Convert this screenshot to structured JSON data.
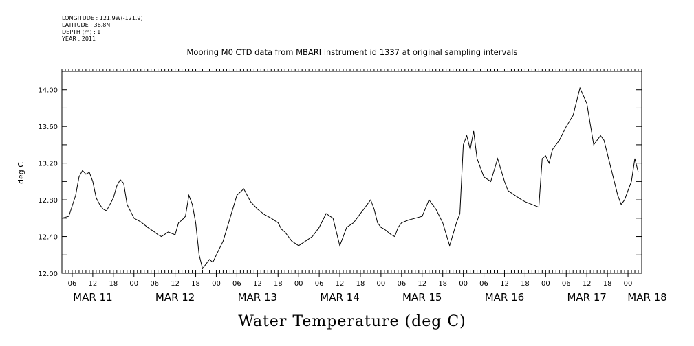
{
  "header": {
    "longitude": "LONGITUDE : 121.9W(-121.9)",
    "latitude": "LATITUDE : 36.8N",
    "depth": "DEPTH (m) : 1",
    "year": "YEAR : 2011"
  },
  "chart_data": {
    "type": "line",
    "title": "Mooring M0 CTD data from MBARI instrument id 1337 at original sampling intervals",
    "ylabel": "deg C",
    "bottom_label": "Water Temperature (deg C)",
    "ylim": [
      12.0,
      14.2
    ],
    "yticks": [
      "12.00",
      "12.40",
      "12.80",
      "13.20",
      "13.60",
      "14.00"
    ],
    "ytick_values": [
      12.0,
      12.4,
      12.8,
      13.2,
      13.6,
      14.0
    ],
    "xlim": [
      "2011-03-11T03:00",
      "2011-03-18T04:00"
    ],
    "hour_ticks": [
      {
        "t": "2011-03-11T06:00",
        "label": "06"
      },
      {
        "t": "2011-03-11T12:00",
        "label": "12"
      },
      {
        "t": "2011-03-11T18:00",
        "label": "18"
      },
      {
        "t": "2011-03-12T00:00",
        "label": "00"
      },
      {
        "t": "2011-03-12T06:00",
        "label": "06"
      },
      {
        "t": "2011-03-12T12:00",
        "label": "12"
      },
      {
        "t": "2011-03-12T18:00",
        "label": "18"
      },
      {
        "t": "2011-03-13T00:00",
        "label": "00"
      },
      {
        "t": "2011-03-13T06:00",
        "label": "06"
      },
      {
        "t": "2011-03-13T12:00",
        "label": "12"
      },
      {
        "t": "2011-03-13T18:00",
        "label": "18"
      },
      {
        "t": "2011-03-14T00:00",
        "label": "00"
      },
      {
        "t": "2011-03-14T06:00",
        "label": "06"
      },
      {
        "t": "2011-03-14T12:00",
        "label": "12"
      },
      {
        "t": "2011-03-14T18:00",
        "label": "18"
      },
      {
        "t": "2011-03-15T00:00",
        "label": "00"
      },
      {
        "t": "2011-03-15T06:00",
        "label": "06"
      },
      {
        "t": "2011-03-15T12:00",
        "label": "12"
      },
      {
        "t": "2011-03-15T18:00",
        "label": "18"
      },
      {
        "t": "2011-03-16T00:00",
        "label": "00"
      },
      {
        "t": "2011-03-16T06:00",
        "label": "06"
      },
      {
        "t": "2011-03-16T12:00",
        "label": "12"
      },
      {
        "t": "2011-03-16T18:00",
        "label": "18"
      },
      {
        "t": "2011-03-17T00:00",
        "label": "00"
      },
      {
        "t": "2011-03-17T06:00",
        "label": "06"
      },
      {
        "t": "2011-03-17T12:00",
        "label": "12"
      },
      {
        "t": "2011-03-17T18:00",
        "label": "18"
      },
      {
        "t": "2011-03-18T00:00",
        "label": "00"
      }
    ],
    "date_labels": [
      {
        "t": "2011-03-11T12:00",
        "label": "MAR 11"
      },
      {
        "t": "2011-03-12T12:00",
        "label": "MAR 12"
      },
      {
        "t": "2011-03-13T12:00",
        "label": "MAR 13"
      },
      {
        "t": "2011-03-14T12:00",
        "label": "MAR 14"
      },
      {
        "t": "2011-03-15T12:00",
        "label": "MAR 15"
      },
      {
        "t": "2011-03-16T12:00",
        "label": "MAR 16"
      },
      {
        "t": "2011-03-17T12:00",
        "label": "MAR 17"
      },
      {
        "t": "2011-03-18T12:00",
        "label": "MAR 18"
      }
    ],
    "series": [
      {
        "x": [
          "2011-03-11T03:00",
          "2011-03-11T05:00",
          "2011-03-11T07:00",
          "2011-03-11T08:00",
          "2011-03-11T09:00",
          "2011-03-11T10:00",
          "2011-03-11T11:00",
          "2011-03-11T12:00",
          "2011-03-11T13:00",
          "2011-03-11T14:00",
          "2011-03-11T15:00",
          "2011-03-11T16:00",
          "2011-03-11T17:00",
          "2011-03-11T18:00",
          "2011-03-11T19:00",
          "2011-03-11T20:00",
          "2011-03-11T21:00",
          "2011-03-11T22:00",
          "2011-03-12T00:00",
          "2011-03-12T02:00",
          "2011-03-12T04:00",
          "2011-03-12T06:00",
          "2011-03-12T07:00",
          "2011-03-12T08:00",
          "2011-03-12T10:00",
          "2011-03-12T12:00",
          "2011-03-12T13:00",
          "2011-03-12T14:00",
          "2011-03-12T15:00",
          "2011-03-12T16:00",
          "2011-03-12T17:00",
          "2011-03-12T18:00",
          "2011-03-12T19:00",
          "2011-03-12T20:00",
          "2011-03-12T21:00",
          "2011-03-12T22:00",
          "2011-03-12T23:00",
          "2011-03-13T00:00",
          "2011-03-13T02:00",
          "2011-03-13T04:00",
          "2011-03-13T06:00",
          "2011-03-13T08:00",
          "2011-03-13T10:00",
          "2011-03-13T12:00",
          "2011-03-13T14:00",
          "2011-03-13T16:00",
          "2011-03-13T18:00",
          "2011-03-13T19:00",
          "2011-03-13T20:00",
          "2011-03-13T21:00",
          "2011-03-13T22:00",
          "2011-03-14T00:00",
          "2011-03-14T02:00",
          "2011-03-14T04:00",
          "2011-03-14T06:00",
          "2011-03-14T08:00",
          "2011-03-14T10:00",
          "2011-03-14T12:00",
          "2011-03-14T14:00",
          "2011-03-14T16:00",
          "2011-03-14T17:00",
          "2011-03-14T18:00",
          "2011-03-14T19:00",
          "2011-03-14T20:00",
          "2011-03-14T21:00",
          "2011-03-14T22:00",
          "2011-03-14T23:00",
          "2011-03-15T00:00",
          "2011-03-15T01:00",
          "2011-03-15T02:00",
          "2011-03-15T03:00",
          "2011-03-15T04:00",
          "2011-03-15T05:00",
          "2011-03-15T06:00",
          "2011-03-15T08:00",
          "2011-03-15T10:00",
          "2011-03-15T12:00",
          "2011-03-15T14:00",
          "2011-03-15T16:00",
          "2011-03-15T18:00",
          "2011-03-15T20:00",
          "2011-03-15T22:00",
          "2011-03-15T23:00",
          "2011-03-16T00:00",
          "2011-03-16T01:00",
          "2011-03-16T02:00",
          "2011-03-16T03:00",
          "2011-03-16T04:00",
          "2011-03-16T06:00",
          "2011-03-16T08:00",
          "2011-03-16T10:00",
          "2011-03-16T12:00",
          "2011-03-16T13:00",
          "2011-03-16T15:00",
          "2011-03-16T17:00",
          "2011-03-16T18:00",
          "2011-03-16T20:00",
          "2011-03-16T22:00",
          "2011-03-16T23:00",
          "2011-03-17T00:00",
          "2011-03-17T01:00",
          "2011-03-17T02:00",
          "2011-03-17T04:00",
          "2011-03-17T06:00",
          "2011-03-17T08:00",
          "2011-03-17T10:00",
          "2011-03-17T12:00",
          "2011-03-17T14:00",
          "2011-03-17T16:00",
          "2011-03-17T17:00",
          "2011-03-17T18:00",
          "2011-03-17T19:00",
          "2011-03-17T20:00",
          "2011-03-17T21:00",
          "2011-03-17T22:00",
          "2011-03-17T23:00",
          "2011-03-18T00:00",
          "2011-03-18T01:00",
          "2011-03-18T02:00",
          "2011-03-18T03:00"
        ],
        "y": [
          12.6,
          12.62,
          12.85,
          13.05,
          13.12,
          13.08,
          13.1,
          13.0,
          12.82,
          12.75,
          12.7,
          12.68,
          12.75,
          12.82,
          12.95,
          13.02,
          12.98,
          12.75,
          12.6,
          12.56,
          12.5,
          12.45,
          12.42,
          12.4,
          12.45,
          12.42,
          12.55,
          12.58,
          12.62,
          12.85,
          12.75,
          12.55,
          12.2,
          12.05,
          12.1,
          12.15,
          12.12,
          12.2,
          12.35,
          12.6,
          12.85,
          12.92,
          12.78,
          12.7,
          12.64,
          12.6,
          12.55,
          12.48,
          12.45,
          12.4,
          12.35,
          12.3,
          12.35,
          12.4,
          12.5,
          12.65,
          12.6,
          12.3,
          12.5,
          12.55,
          12.6,
          12.65,
          12.7,
          12.75,
          12.8,
          12.7,
          12.55,
          12.5,
          12.48,
          12.45,
          12.42,
          12.4,
          12.5,
          12.55,
          12.58,
          12.6,
          12.62,
          12.8,
          12.7,
          12.55,
          12.3,
          12.55,
          12.65,
          13.4,
          13.5,
          13.35,
          13.55,
          13.25,
          13.05,
          13.0,
          13.25,
          13.0,
          12.9,
          12.85,
          12.8,
          12.78,
          12.75,
          12.72,
          13.25,
          13.28,
          13.2,
          13.35,
          13.45,
          13.6,
          13.72,
          14.02,
          13.85,
          13.4,
          13.5,
          13.45,
          13.3,
          13.15,
          13.0,
          12.85,
          12.75,
          12.8,
          12.9,
          13.0,
          13.25,
          13.1
        ],
        "color": "#000000"
      }
    ]
  }
}
